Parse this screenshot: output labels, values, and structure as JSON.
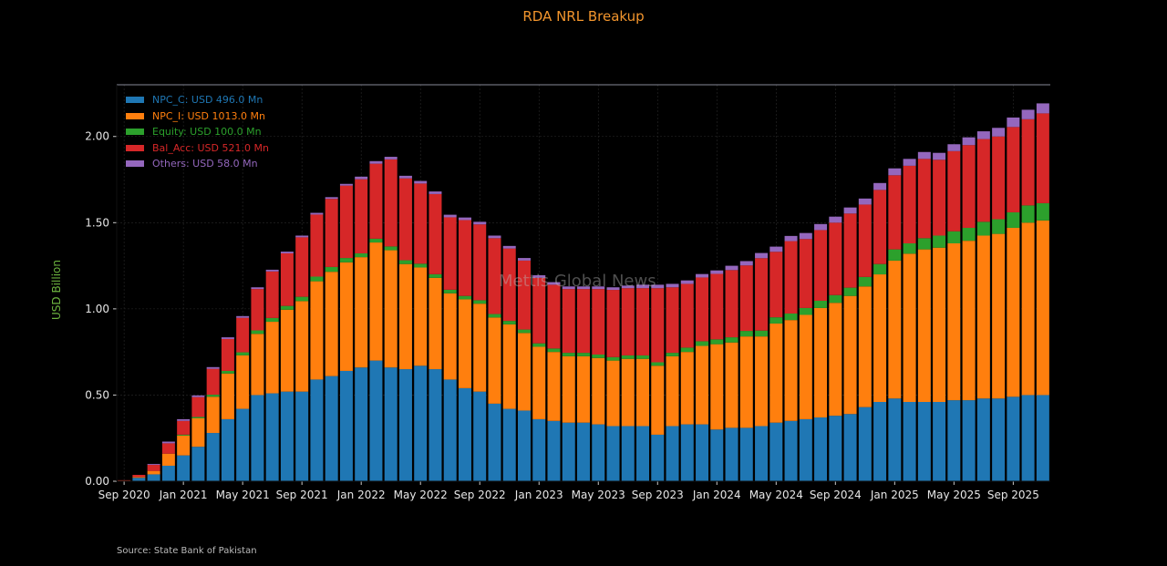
{
  "title": "RDA NRL Breakup",
  "ylabel": "USD Billion",
  "source": "Source: State Bank of Pakistan",
  "watermark": "Mettis Global News",
  "colors": {
    "background": "#000000",
    "title": "#f2952d",
    "ylabel": "#6cb33f",
    "NPC_C": "#1f77b4",
    "NPC_I": "#ff7f0e",
    "Equity": "#2ca02c",
    "Bal_Acc": "#d62728",
    "Others": "#9467bd"
  },
  "legend": [
    {
      "key": "NPC_C",
      "label": "NPC_C: USD 496.0 Mn"
    },
    {
      "key": "NPC_I",
      "label": "NPC_I: USD 1013.0 Mn"
    },
    {
      "key": "Equity",
      "label": "Equity: USD 100.0 Mn"
    },
    {
      "key": "Bal_Acc",
      "label": "Bal_Acc: USD 521.0 Mn"
    },
    {
      "key": "Others",
      "label": "Others: USD 58.0 Mn"
    }
  ],
  "chart_data": {
    "type": "bar",
    "stacked": true,
    "title": "RDA NRL Breakup",
    "xlabel": "",
    "ylabel": "USD Billion",
    "ylim": [
      0,
      2.3
    ],
    "yticks": [
      0.0,
      0.5,
      1.0,
      1.5,
      2.0
    ],
    "ytick_labels": [
      "0.00",
      "0.50",
      "1.00",
      "1.50",
      "2.00"
    ],
    "xtick_labels": [
      "Sep 2020",
      "Jan 2021",
      "May 2021",
      "Sep 2021",
      "Jan 2022",
      "May 2022",
      "Sep 2022",
      "Jan 2023",
      "May 2023",
      "Sep 2023",
      "Jan 2024",
      "May 2024",
      "Sep 2024",
      "Jan 2025",
      "May 2025",
      "Sep 2025"
    ],
    "xtick_every": 4,
    "grid": true,
    "legend_position": "top-left",
    "categories": [
      "Sep 2020",
      "Oct 2020",
      "Nov 2020",
      "Dec 2020",
      "Jan 2021",
      "Feb 2021",
      "Mar 2021",
      "Apr 2021",
      "May 2021",
      "Jun 2021",
      "Jul 2021",
      "Aug 2021",
      "Sep 2021",
      "Oct 2021",
      "Nov 2021",
      "Dec 2021",
      "Jan 2022",
      "Feb 2022",
      "Mar 2022",
      "Apr 2022",
      "May 2022",
      "Jun 2022",
      "Jul 2022",
      "Aug 2022",
      "Sep 2022",
      "Oct 2022",
      "Nov 2022",
      "Dec 2022",
      "Jan 2023",
      "Feb 2023",
      "Mar 2023",
      "Apr 2023",
      "May 2023",
      "Jun 2023",
      "Jul 2023",
      "Aug 2023",
      "Sep 2023",
      "Oct 2023",
      "Nov 2023",
      "Dec 2023",
      "Jan 2024",
      "Feb 2024",
      "Mar 2024",
      "Apr 2024",
      "May 2024",
      "Jun 2024",
      "Jul 2024",
      "Aug 2024",
      "Sep 2024",
      "Oct 2024",
      "Nov 2024",
      "Dec 2024",
      "Jan 2025",
      "Feb 2025",
      "Mar 2025",
      "Apr 2025",
      "May 2025",
      "Jun 2025",
      "Jul 2025",
      "Aug 2025",
      "Sep 2025",
      "Oct 2025",
      "Nov 2025"
    ],
    "series": [
      {
        "name": "NPC_C",
        "values": [
          0.003,
          0.02,
          0.04,
          0.09,
          0.15,
          0.2,
          0.28,
          0.36,
          0.42,
          0.5,
          0.51,
          0.52,
          0.52,
          0.59,
          0.61,
          0.64,
          0.66,
          0.7,
          0.66,
          0.65,
          0.67,
          0.65,
          0.59,
          0.54,
          0.52,
          0.45,
          0.42,
          0.41,
          0.36,
          0.35,
          0.34,
          0.34,
          0.33,
          0.32,
          0.32,
          0.32,
          0.27,
          0.32,
          0.33,
          0.33,
          0.3,
          0.31,
          0.31,
          0.32,
          0.34,
          0.35,
          0.36,
          0.37,
          0.38,
          0.39,
          0.43,
          0.46,
          0.48,
          0.46,
          0.46,
          0.46,
          0.47,
          0.47,
          0.48,
          0.48,
          0.49,
          0.5,
          0.5
        ]
      },
      {
        "name": "NPC_I",
        "values": [
          0.001,
          0.005,
          0.02,
          0.07,
          0.115,
          0.165,
          0.21,
          0.265,
          0.31,
          0.355,
          0.415,
          0.475,
          0.525,
          0.57,
          0.605,
          0.63,
          0.64,
          0.685,
          0.68,
          0.61,
          0.57,
          0.53,
          0.5,
          0.515,
          0.51,
          0.5,
          0.49,
          0.45,
          0.42,
          0.4,
          0.385,
          0.385,
          0.385,
          0.38,
          0.39,
          0.39,
          0.4,
          0.405,
          0.42,
          0.455,
          0.495,
          0.495,
          0.53,
          0.52,
          0.575,
          0.585,
          0.605,
          0.635,
          0.655,
          0.685,
          0.7,
          0.74,
          0.8,
          0.86,
          0.885,
          0.895,
          0.91,
          0.925,
          0.945,
          0.955,
          0.98,
          1.0,
          1.013
        ]
      },
      {
        "name": "Equity",
        "values": [
          0,
          0,
          0,
          0,
          0.005,
          0.008,
          0.012,
          0.015,
          0.018,
          0.02,
          0.022,
          0.022,
          0.025,
          0.027,
          0.028,
          0.025,
          0.022,
          0.022,
          0.022,
          0.022,
          0.022,
          0.021,
          0.021,
          0.02,
          0.02,
          0.02,
          0.02,
          0.02,
          0.02,
          0.02,
          0.02,
          0.02,
          0.02,
          0.02,
          0.02,
          0.02,
          0.02,
          0.02,
          0.025,
          0.027,
          0.028,
          0.03,
          0.032,
          0.034,
          0.036,
          0.038,
          0.04,
          0.042,
          0.045,
          0.048,
          0.055,
          0.06,
          0.065,
          0.06,
          0.065,
          0.07,
          0.07,
          0.075,
          0.08,
          0.085,
          0.09,
          0.1,
          0.1
        ]
      },
      {
        "name": "Bal_Acc",
        "values": [
          0.002,
          0.012,
          0.035,
          0.06,
          0.08,
          0.115,
          0.15,
          0.185,
          0.2,
          0.24,
          0.27,
          0.305,
          0.345,
          0.36,
          0.395,
          0.42,
          0.43,
          0.435,
          0.505,
          0.475,
          0.465,
          0.465,
          0.42,
          0.44,
          0.44,
          0.44,
          0.42,
          0.4,
          0.38,
          0.37,
          0.37,
          0.37,
          0.38,
          0.39,
          0.39,
          0.39,
          0.43,
          0.38,
          0.37,
          0.37,
          0.38,
          0.39,
          0.38,
          0.42,
          0.38,
          0.42,
          0.4,
          0.41,
          0.42,
          0.43,
          0.42,
          0.43,
          0.43,
          0.45,
          0.46,
          0.44,
          0.465,
          0.48,
          0.48,
          0.48,
          0.495,
          0.5,
          0.521
        ]
      },
      {
        "name": "Others",
        "values": [
          0,
          0,
          0.005,
          0.01,
          0.01,
          0.01,
          0.01,
          0.01,
          0.01,
          0.01,
          0.01,
          0.01,
          0.01,
          0.01,
          0.01,
          0.01,
          0.015,
          0.015,
          0.015,
          0.015,
          0.015,
          0.015,
          0.015,
          0.015,
          0.015,
          0.015,
          0.015,
          0.015,
          0.015,
          0.015,
          0.015,
          0.015,
          0.015,
          0.015,
          0.015,
          0.02,
          0.02,
          0.02,
          0.02,
          0.02,
          0.02,
          0.025,
          0.025,
          0.03,
          0.03,
          0.03,
          0.035,
          0.035,
          0.035,
          0.035,
          0.035,
          0.04,
          0.04,
          0.04,
          0.04,
          0.04,
          0.04,
          0.045,
          0.045,
          0.05,
          0.055,
          0.055,
          0.058
        ]
      }
    ]
  }
}
